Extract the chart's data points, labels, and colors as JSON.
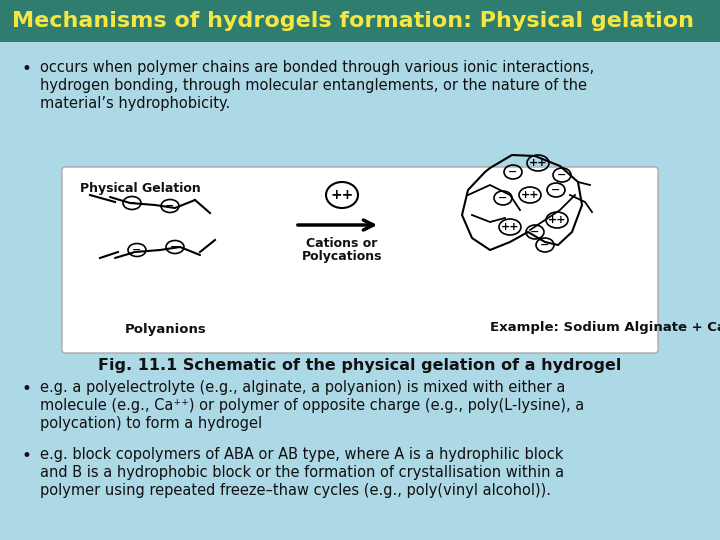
{
  "title": "Mechanisms of hydrogels formation: Physical gelation",
  "title_bg_color": "#2e7d6e",
  "title_text_color": "#f5e642",
  "slide_bg": "#add8e6",
  "bullet1_line1": "occurs when polymer chains are bonded through various ionic interactions,",
  "bullet1_line2": "hydrogen bonding, through molecular entanglements, or the nature of the",
  "bullet1_line3": "material’s hydrophobicity.",
  "box_label": "Physical Gelation",
  "box_label2_line1": "Cations or",
  "box_label2_line2": "Polycations",
  "box_label3": "Polyanions",
  "box_label4": "Example: Sodium Alginate + Calcium",
  "fig_caption": "Fig. 11.1 Schematic of the physical gelation of a hydrogel",
  "bullet2_line1": "e.g. a polyelectrolyte (e.g., alginate, a polyanion) is mixed with either a",
  "bullet2_line2": "molecule (e.g., Ca⁺⁺) or polymer of opposite charge (e.g., poly(L-lysine), a",
  "bullet2_line3": "polycation) to form a hydrogel",
  "bullet3_line1": "e.g. block copolymers of ABA or AB type, where A is a hydrophilic block",
  "bullet3_line2": "and B is a hydrophobic block or the formation of crystallisation within a",
  "bullet3_line3": "polymer using repeated freeze–thaw cycles (e.g., poly(vinyl alcohol)).",
  "text_color": "#111111",
  "title_fontsize": 16,
  "body_fontsize": 10.5,
  "caption_fontsize": 11.5,
  "box_border_color": "#aaaaaa",
  "white_box": "#ffffff"
}
